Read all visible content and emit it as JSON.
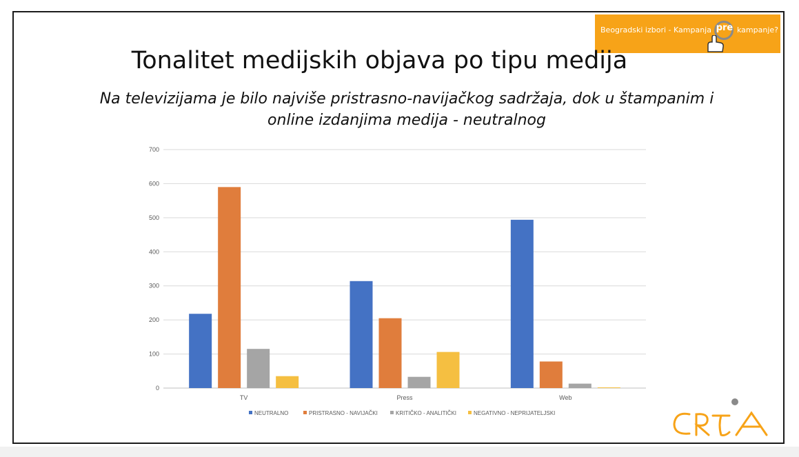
{
  "slide": {
    "title": "Tonalitet medijskih objava po tipu medija",
    "subtitle": "Na televizijama je bilo najviše pristrasno-navijačkog sadržaja, dok u štampanim i online izdanjima medija - neutralnog"
  },
  "badge": {
    "text_before": "Beogradski izbori - Kampanja",
    "highlight": "pre",
    "text_after": "kampanje?",
    "background": "#f7a318",
    "icon": "pointing-hand-icon"
  },
  "logo": {
    "name": "CRTA",
    "color": "#f7a318"
  },
  "chart_data": {
    "type": "bar",
    "categories": [
      "TV",
      "Press",
      "Web"
    ],
    "series": [
      {
        "name": "NEUTRALNO",
        "color": "#4472c4",
        "values": [
          218,
          314,
          494
        ]
      },
      {
        "name": "PRISTRASNO - NAVIJAČKI",
        "color": "#e07d3c",
        "values": [
          590,
          205,
          78
        ]
      },
      {
        "name": "KRITIČKO - ANALITIČKI",
        "color": "#a5a5a5",
        "values": [
          115,
          33,
          13
        ]
      },
      {
        "name": "NEGATIVNO - NEPRIJATELJSKI",
        "color": "#f5bf41",
        "values": [
          35,
          106,
          2
        ]
      }
    ],
    "ylim": [
      0,
      700
    ],
    "yticks": [
      0,
      100,
      200,
      300,
      400,
      500,
      600,
      700
    ],
    "grid": true,
    "legend": "bottom"
  }
}
